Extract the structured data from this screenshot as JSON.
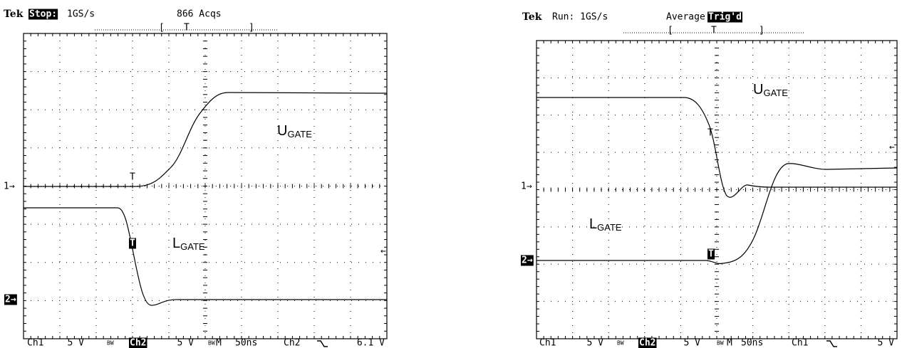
{
  "left_scope": {
    "header": {
      "brand": "Tek",
      "status": "Stop:",
      "rate": "1GS/s",
      "acquisitions": "866 Acqs",
      "trigger_bracket_open": "[",
      "trigger_bracket_mark": "T",
      "trigger_bracket_close": "]"
    },
    "traces": {
      "upper": "U",
      "upper_sub": "GATE",
      "lower": "L",
      "lower_sub": "GATE"
    },
    "markers": {
      "ch1": "1→",
      "ch2": "2→",
      "level": "←",
      "trigger_upper": "T",
      "trigger_lower": "T"
    },
    "footer": [
      "Ch1",
      "5 V",
      "BW",
      "Ch2",
      "5 V",
      "BW",
      "M",
      "50ns",
      "Ch2",
      "6.1 V"
    ]
  },
  "right_scope": {
    "header": {
      "brand": "Tek",
      "status": "Run: 1GS/s",
      "mode": "Average",
      "trigger_state": "Trig'd",
      "trigger_bracket_open": "[",
      "trigger_bracket_mark": "T",
      "trigger_bracket_close": "]"
    },
    "traces": {
      "upper": "U",
      "upper_sub": "GATE",
      "lower": "L",
      "lower_sub": "GATE"
    },
    "markers": {
      "ch1": "1→",
      "ch2": "2→",
      "level": "←",
      "trigger_upper": "T",
      "trigger_lower": "T"
    },
    "footer": [
      "Ch1",
      "5 V",
      "BW",
      "Ch2",
      "5 V",
      "BW",
      "M",
      "50ns",
      "Ch1",
      "5 V"
    ]
  }
}
